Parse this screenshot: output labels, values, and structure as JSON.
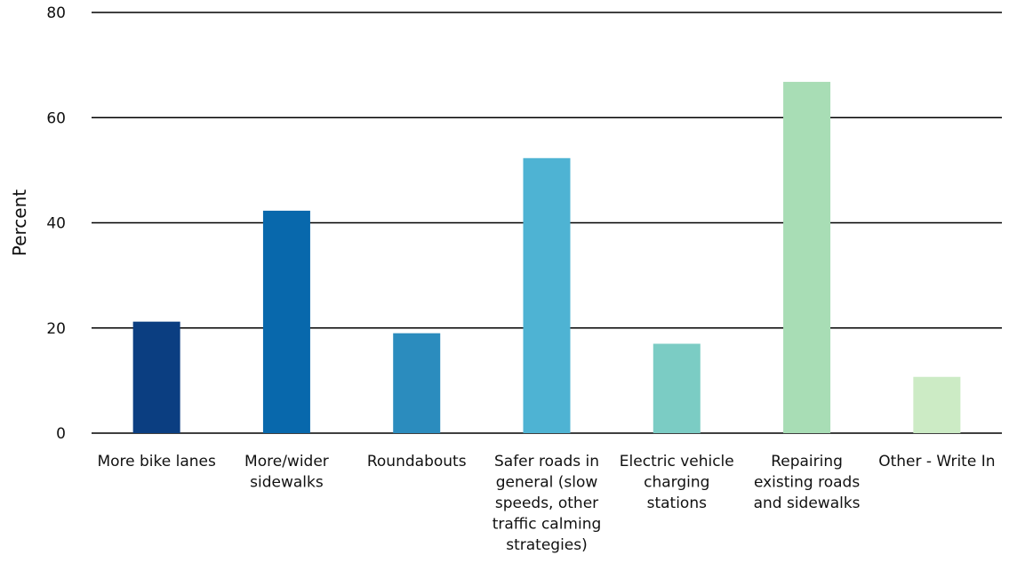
{
  "chart_data": {
    "type": "bar",
    "title": "",
    "xlabel": "",
    "ylabel": "Percent",
    "ylim": [
      0,
      80
    ],
    "yticks": [
      0,
      20,
      40,
      60,
      80
    ],
    "grid": true,
    "legend": "none",
    "categories": [
      [
        "More bike lanes"
      ],
      [
        "More/wider",
        "sidewalks"
      ],
      [
        "Roundabouts"
      ],
      [
        "Safer roads in",
        "general (slow",
        "speeds, other",
        "traffic calming",
        "strategies)"
      ],
      [
        "Electric vehicle",
        "charging",
        "stations"
      ],
      [
        "Repairing",
        "existing roads",
        "and sidewalks"
      ],
      [
        "Other - Write In"
      ]
    ],
    "values": [
      21.2,
      42.3,
      19.0,
      52.3,
      17.0,
      66.8,
      10.7
    ],
    "colors": [
      "#0b3e81",
      "#0868ac",
      "#2b8cbe",
      "#4eb3d3",
      "#7bccc4",
      "#a8ddb5",
      "#ccebc5"
    ]
  }
}
